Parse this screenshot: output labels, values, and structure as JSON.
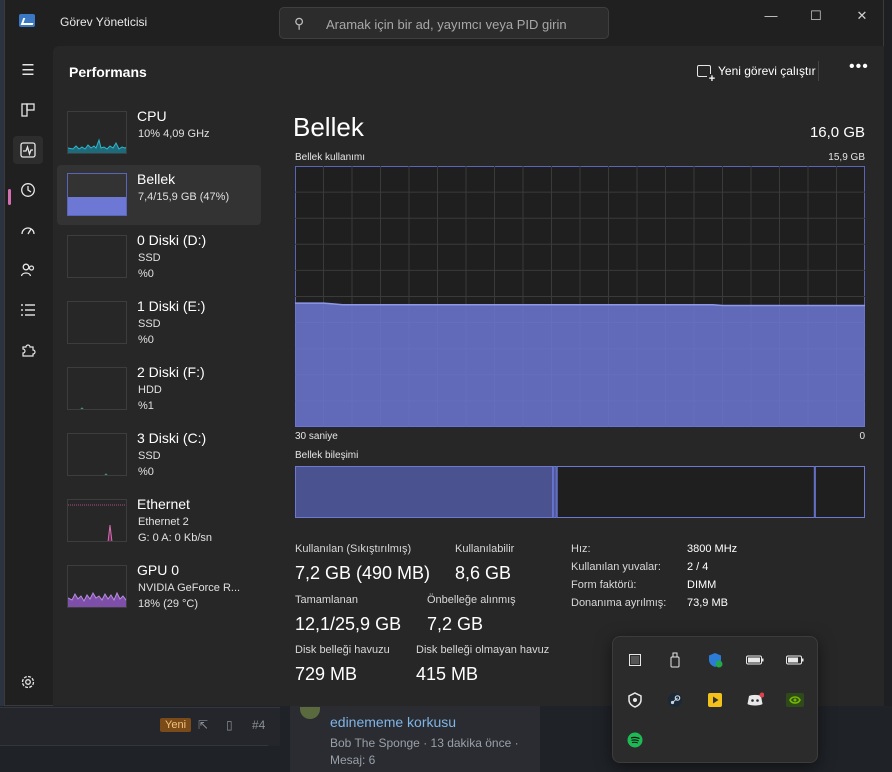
{
  "window": {
    "title": "Görev Yöneticisi",
    "min": "—",
    "max": "☐",
    "close": "✕"
  },
  "search": {
    "placeholder": "Aramak için bir ad, yayımcı veya PID girin"
  },
  "header": {
    "title": "Performans",
    "run_task_label": "Yeni görevi çalıştır",
    "more_label": "•••"
  },
  "nav": {
    "items": [
      "hamburger-menu",
      "processes",
      "performance",
      "app-history",
      "startup-apps",
      "users",
      "details",
      "services"
    ],
    "settings": "settings"
  },
  "devices": [
    {
      "name": "CPU",
      "line1": "10%  4,09 GHz",
      "line2": ""
    },
    {
      "name": "Bellek",
      "line1": "7,4/15,9 GB (47%)",
      "line2": ""
    },
    {
      "name": "0 Diski (D:)",
      "line1": "SSD",
      "line2": "%0"
    },
    {
      "name": "1 Diski (E:)",
      "line1": "SSD",
      "line2": "%0"
    },
    {
      "name": "2 Diski (F:)",
      "line1": "HDD",
      "line2": "%1"
    },
    {
      "name": "3 Diski (C:)",
      "line1": "SSD",
      "line2": "%0"
    },
    {
      "name": "Ethernet",
      "line1": "Ethernet 2",
      "line2": "G: 0  A: 0 Kb/sn"
    },
    {
      "name": "GPU 0",
      "line1": "NVIDIA GeForce R...",
      "line2": "18%  (29 °C)"
    }
  ],
  "memory": {
    "title": "Bellek",
    "total": "16,0 GB",
    "usage_label": "Bellek kullanımı",
    "usage_max": "15,9 GB",
    "axis_left": "30 saniye",
    "axis_right": "0",
    "composition_label": "Bellek bileşimi",
    "stats": {
      "in_use_label": "Kullanılan (Sıkıştırılmış)",
      "in_use": "7,2 GB (490 MB)",
      "available_label": "Kullanılabilir",
      "available": "8,6 GB",
      "committed_label": "Tamamlanan",
      "committed": "12,1/25,9 GB",
      "cached_label": "Önbelleğe alınmış",
      "cached": "7,2 GB",
      "paged_label": "Disk belleği havuzu",
      "paged": "729 MB",
      "nonpaged_label": "Disk belleği olmayan havuz",
      "nonpaged": "415 MB"
    },
    "specs": [
      {
        "label": "Hız:",
        "value": "3800 MHz"
      },
      {
        "label": "Kullanılan yuvalar:",
        "value": "2 / 4"
      },
      {
        "label": "Form faktörü:",
        "value": "DIMM"
      },
      {
        "label": "Donanıma ayrılmış:",
        "value": "73,9 MB"
      }
    ]
  },
  "background": {
    "badge": "Yeni",
    "post_number": "#4",
    "forum_title": "edinememe korkusu",
    "forum_meta": "Bob The Sponge · 13 dakika önce ·",
    "forum_msg": "Mesaj: 6"
  },
  "chart_data": [
    {
      "type": "area",
      "title": "Bellek kullanımı",
      "xlabel": "30 saniye",
      "x_right_label": "0",
      "ylim": [
        0,
        15.9
      ],
      "unit": "GB",
      "values": [
        7.55,
        7.55,
        7.55,
        7.55,
        7.5,
        7.45,
        7.45,
        7.45,
        7.45,
        7.45,
        7.45,
        7.45,
        7.45,
        7.45,
        7.45,
        7.45,
        7.45,
        7.45,
        7.45,
        7.45,
        7.45,
        7.45,
        7.45,
        7.45,
        7.45,
        7.45,
        7.45,
        7.45,
        7.45,
        7.45,
        7.45,
        7.45,
        7.45,
        7.45,
        7.45,
        7.45,
        7.45,
        7.45,
        7.45,
        7.45,
        7.45,
        7.45,
        7.45,
        7.45,
        7.45,
        7.4,
        7.4,
        7.4,
        7.4,
        7.4,
        7.4,
        7.4,
        7.4,
        7.4,
        7.4,
        7.4,
        7.4,
        7.4,
        7.4,
        7.4,
        7.4
      ],
      "colors": {
        "fill": "#6c78d4",
        "line": "#8e98e8",
        "grid": "#3a3a3a"
      },
      "grid": true
    },
    {
      "type": "bar",
      "title": "Bellek bileşimi",
      "segments": [
        {
          "name": "in-use",
          "gb": 7.2
        },
        {
          "name": "modified",
          "gb": 0.1
        },
        {
          "name": "standby",
          "gb": 7.2
        },
        {
          "name": "free",
          "gb": 1.4
        }
      ],
      "total_gb": 15.9
    }
  ]
}
